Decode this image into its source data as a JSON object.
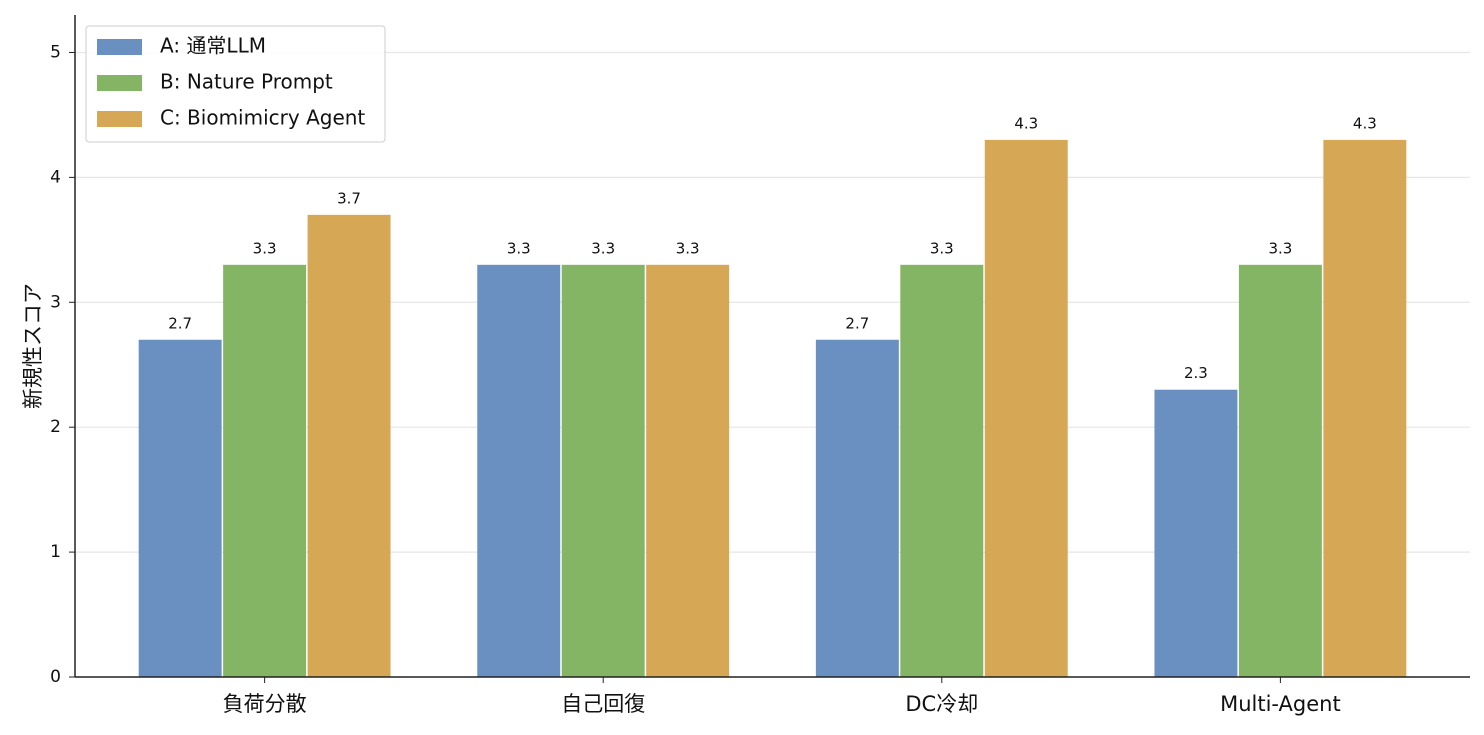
{
  "chart_data": {
    "type": "bar",
    "y_label": "新規性スコア",
    "categories": [
      "負荷分散",
      "自己回復",
      "DC冷却",
      "Multi-Agent"
    ],
    "series": [
      {
        "name": "A: 通常LLM",
        "color": "#6a8fc1",
        "values": [
          2.7,
          3.3,
          2.7,
          2.3
        ]
      },
      {
        "name": "B: Nature Prompt",
        "color": "#84b565",
        "values": [
          3.3,
          3.3,
          3.3,
          3.3
        ]
      },
      {
        "name": "C: Biomimicry Agent",
        "color": "#d6a855",
        "values": [
          3.7,
          3.3,
          4.3,
          4.3
        ]
      }
    ],
    "ylim": [
      0,
      5.3
    ],
    "yticks": [
      0,
      1,
      2,
      3,
      4,
      5
    ],
    "grid": true,
    "legend": "upper-left"
  }
}
